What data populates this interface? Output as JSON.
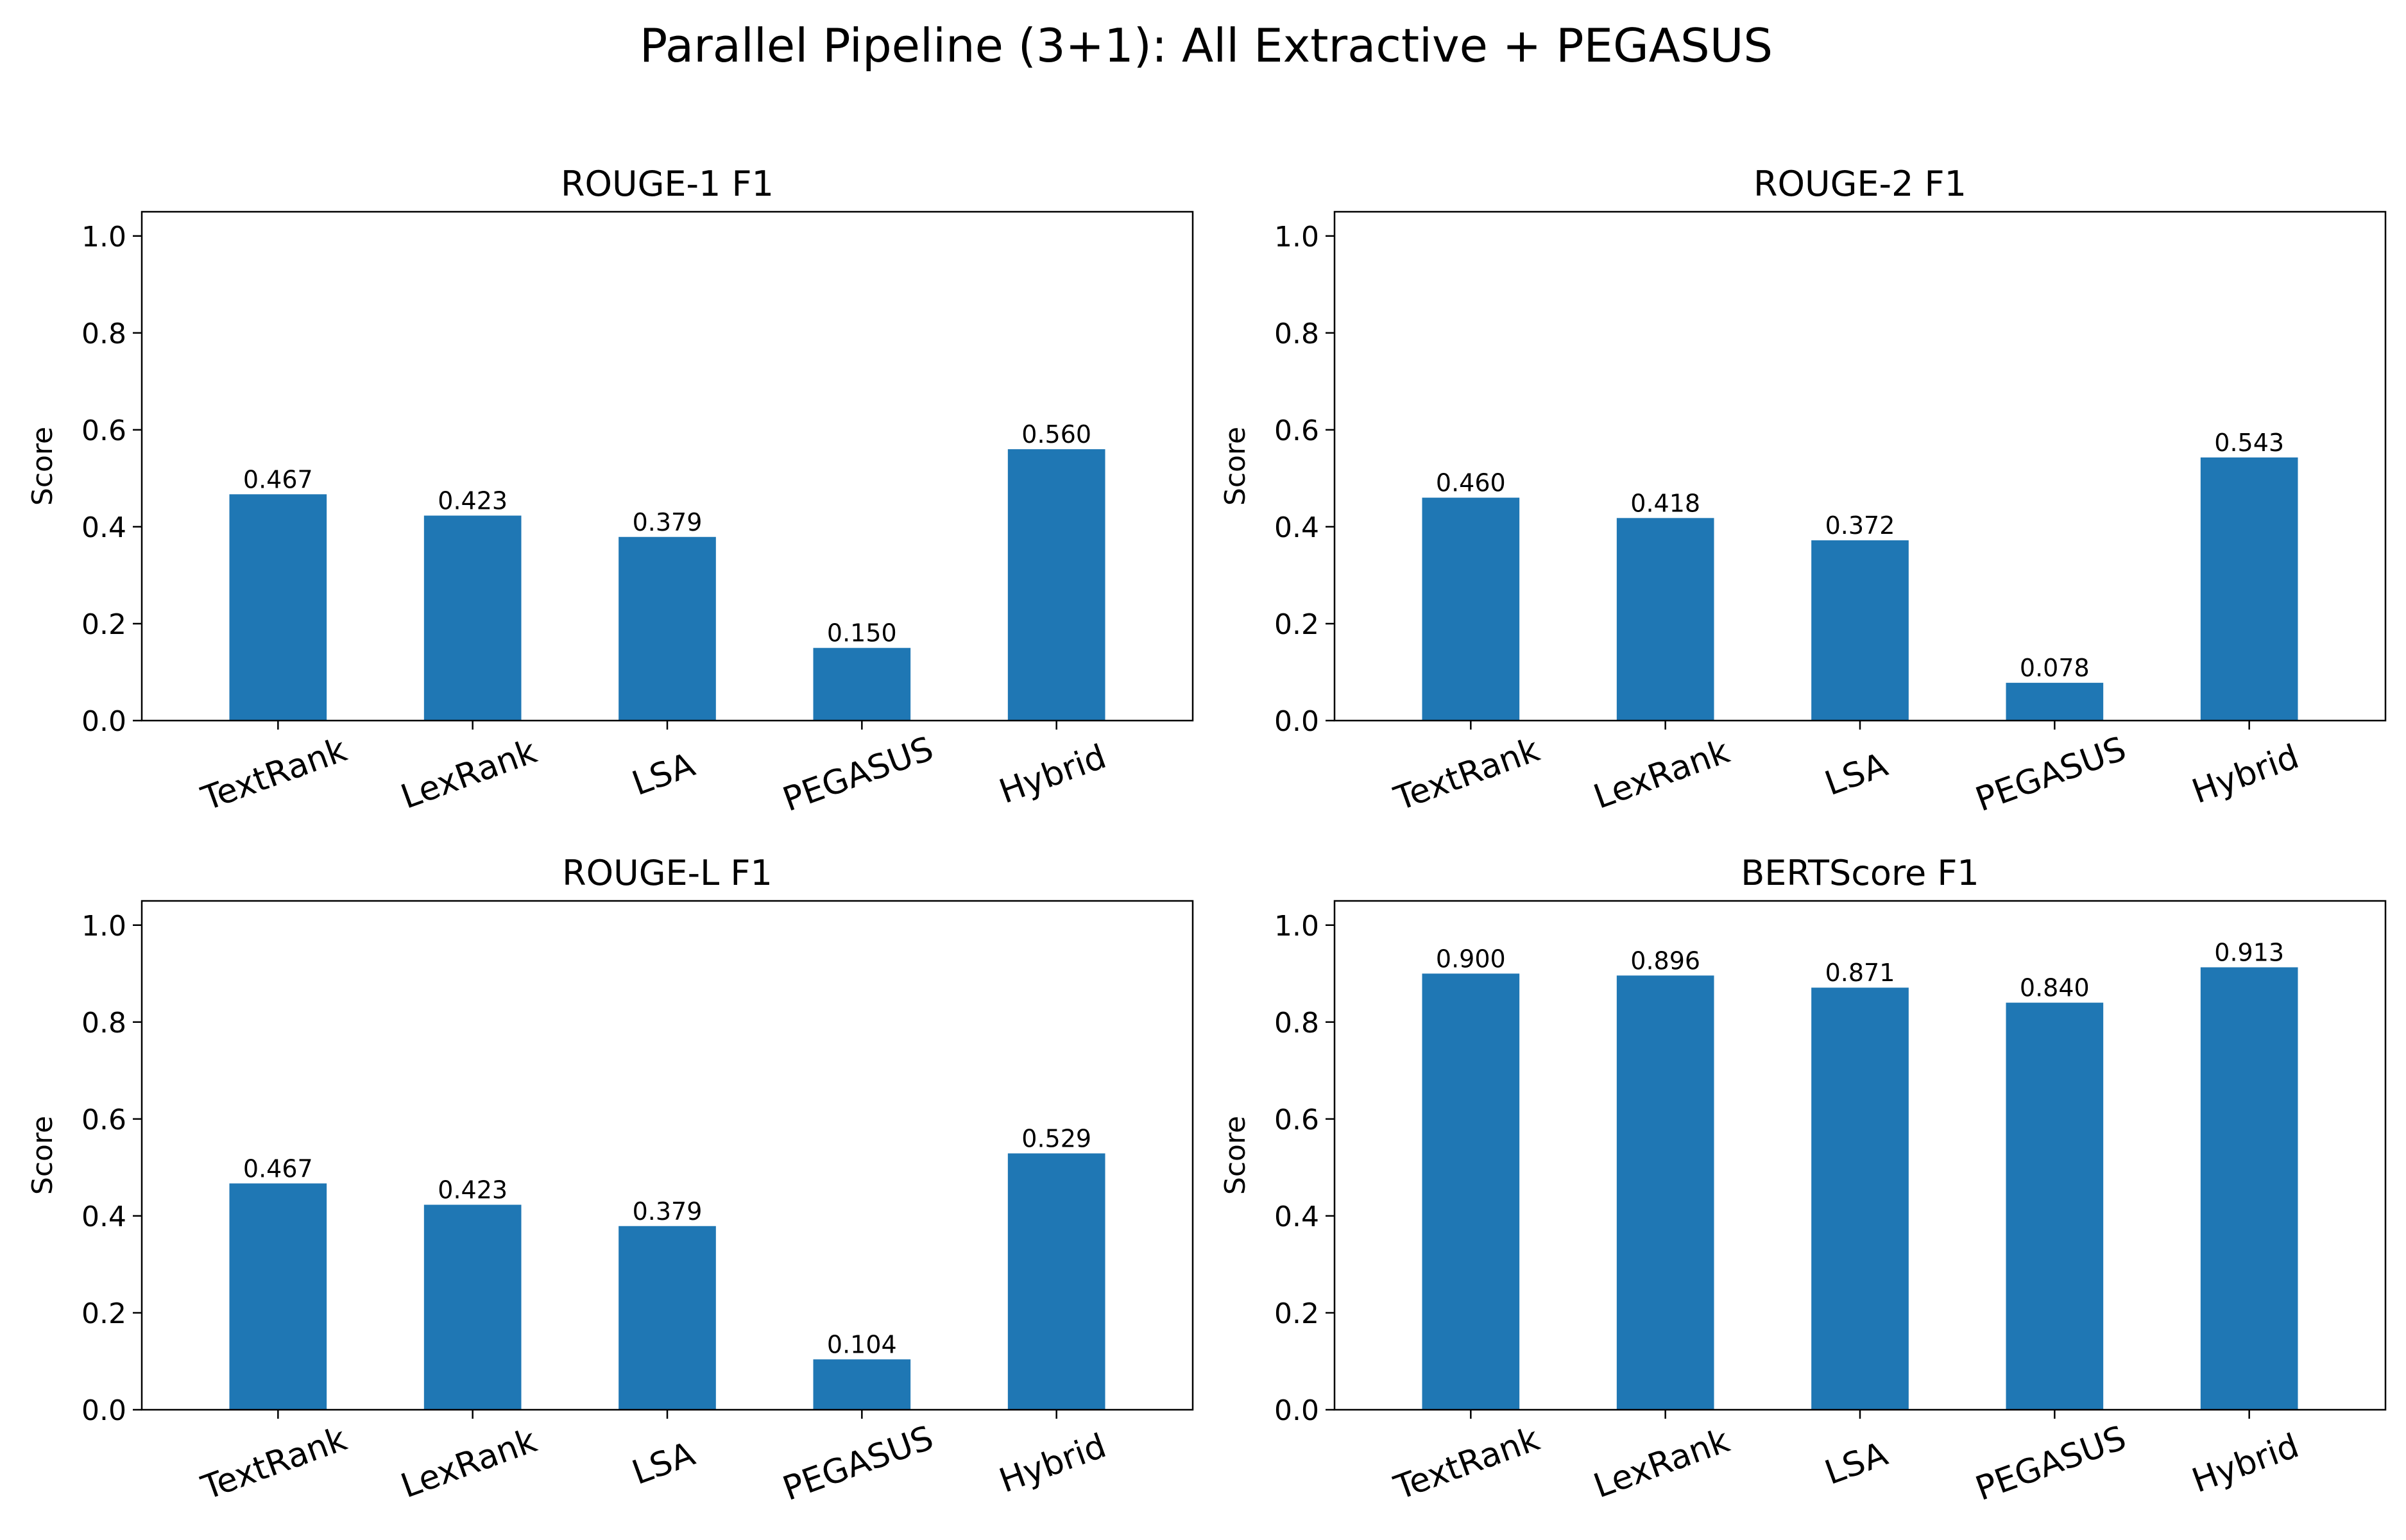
{
  "figure": {
    "suptitle": "Parallel Pipeline (3+1): All Extractive + PEGASUS",
    "bar_color": "#1f77b4"
  },
  "chart_data": [
    {
      "type": "bar",
      "title": "ROUGE-1 F1",
      "xlabel": "",
      "ylabel": "Score",
      "categories": [
        "TextRank",
        "LexRank",
        "LSA",
        "PEGASUS",
        "Hybrid"
      ],
      "values": [
        0.467,
        0.423,
        0.379,
        0.15,
        0.56
      ],
      "value_labels": [
        "0.467",
        "0.423",
        "0.379",
        "0.150",
        "0.560"
      ],
      "ylim": [
        0,
        1.05
      ],
      "yticks": [
        "0.0",
        "0.2",
        "0.4",
        "0.6",
        "0.8",
        "1.0"
      ],
      "grid": false,
      "x_tick_rotation": "20 degrees"
    },
    {
      "type": "bar",
      "title": "ROUGE-2 F1",
      "xlabel": "",
      "ylabel": "Score",
      "categories": [
        "TextRank",
        "LexRank",
        "LSA",
        "PEGASUS",
        "Hybrid"
      ],
      "values": [
        0.46,
        0.418,
        0.372,
        0.078,
        0.543
      ],
      "value_labels": [
        "0.460",
        "0.418",
        "0.372",
        "0.078",
        "0.543"
      ],
      "ylim": [
        0,
        1.05
      ],
      "yticks": [
        "0.0",
        "0.2",
        "0.4",
        "0.6",
        "0.8",
        "1.0"
      ],
      "grid": false,
      "x_tick_rotation": "20 degrees"
    },
    {
      "type": "bar",
      "title": "ROUGE-L F1",
      "xlabel": "",
      "ylabel": "Score",
      "categories": [
        "TextRank",
        "LexRank",
        "LSA",
        "PEGASUS",
        "Hybrid"
      ],
      "values": [
        0.467,
        0.423,
        0.379,
        0.104,
        0.529
      ],
      "value_labels": [
        "0.467",
        "0.423",
        "0.379",
        "0.104",
        "0.529"
      ],
      "ylim": [
        0,
        1.05
      ],
      "yticks": [
        "0.0",
        "0.2",
        "0.4",
        "0.6",
        "0.8",
        "1.0"
      ],
      "grid": false,
      "x_tick_rotation": "20 degrees"
    },
    {
      "type": "bar",
      "title": "BERTScore F1",
      "xlabel": "",
      "ylabel": "Score",
      "categories": [
        "TextRank",
        "LexRank",
        "LSA",
        "PEGASUS",
        "Hybrid"
      ],
      "values": [
        0.9,
        0.896,
        0.871,
        0.84,
        0.913
      ],
      "value_labels": [
        "0.900",
        "0.896",
        "0.871",
        "0.840",
        "0.913"
      ],
      "ylim": [
        0,
        1.05
      ],
      "yticks": [
        "0.0",
        "0.2",
        "0.4",
        "0.6",
        "0.8",
        "1.0"
      ],
      "grid": false,
      "x_tick_rotation": "20 degrees"
    }
  ]
}
